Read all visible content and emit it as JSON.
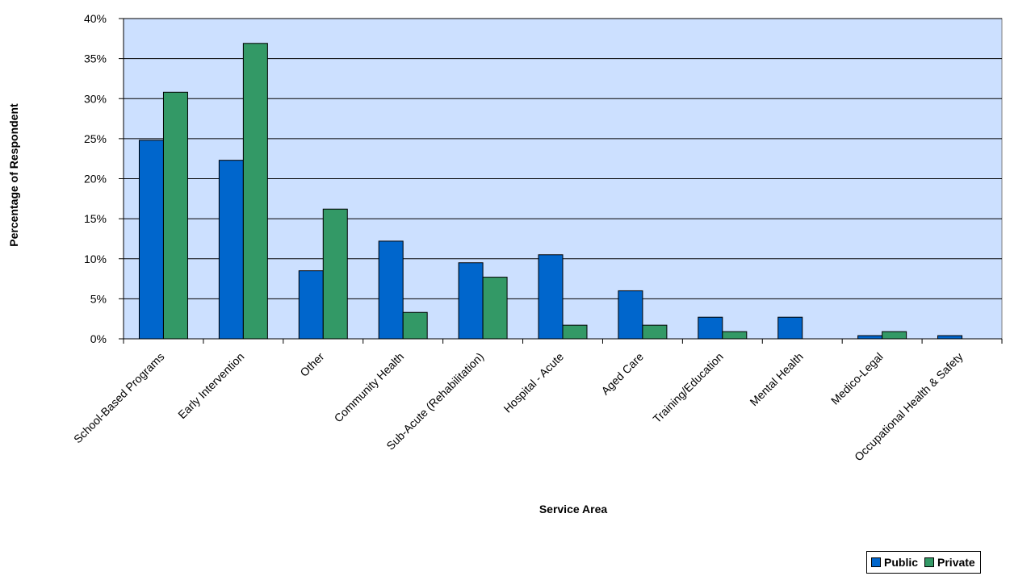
{
  "chart_data": {
    "type": "bar",
    "title": "",
    "xlabel": "Service Area",
    "ylabel": "Percentage of Respondent",
    "ylim": [
      0,
      40
    ],
    "y_ticks": [
      0,
      5,
      10,
      15,
      20,
      25,
      30,
      35,
      40
    ],
    "y_tick_labels": [
      "0%",
      "5%",
      "10%",
      "15%",
      "20%",
      "25%",
      "30%",
      "35%",
      "40%"
    ],
    "grid": true,
    "legend_position": "bottom-right",
    "categories": [
      "School-Based Programs",
      "Early Intervention",
      "Other",
      "Community Health",
      "Sub-Acute (Rehabilitation)",
      "Hospital - Acute",
      "Aged Care",
      "Training/Education",
      "Mental Health",
      "Medico-Legal",
      "Occupational Health & Safety"
    ],
    "series": [
      {
        "name": "Public",
        "color": "#0066CC",
        "values": [
          24.8,
          22.3,
          8.5,
          12.2,
          9.5,
          10.5,
          6.0,
          2.7,
          2.7,
          0.4,
          0.4
        ]
      },
      {
        "name": "Private",
        "color": "#339966",
        "values": [
          30.8,
          36.9,
          16.2,
          3.3,
          7.7,
          1.7,
          1.7,
          0.9,
          0,
          0.9,
          0
        ]
      }
    ],
    "plot_background": "#CCE0FF"
  }
}
